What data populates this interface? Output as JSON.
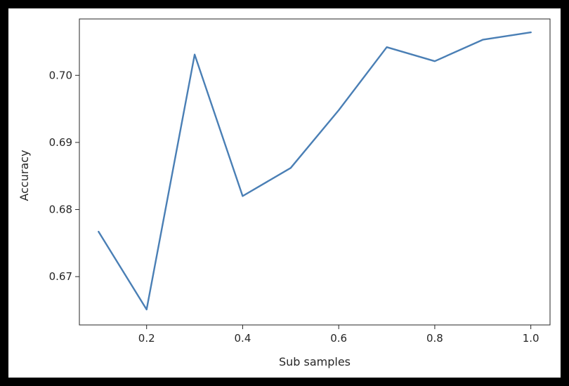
{
  "chart_data": {
    "type": "line",
    "title": "",
    "xlabel": "Sub samples",
    "ylabel": "Accuracy",
    "xlim": [
      0.06,
      1.04
    ],
    "ylim": [
      0.6628,
      0.7084
    ],
    "x_ticks": [
      0.2,
      0.4,
      0.6,
      0.8,
      1.0
    ],
    "x_tick_labels": [
      "0.2",
      "0.4",
      "0.6",
      "0.8",
      "1.0"
    ],
    "y_ticks": [
      0.67,
      0.68,
      0.69,
      0.7
    ],
    "y_tick_labels": [
      "0.67",
      "0.68",
      "0.69",
      "0.70"
    ],
    "grid": false,
    "series": [
      {
        "color": "#4a7fb5",
        "x": [
          0.1,
          0.2,
          0.3,
          0.4,
          0.5,
          0.6,
          0.7,
          0.8,
          0.9,
          1.0
        ],
        "y": [
          0.6767,
          0.6651,
          0.7031,
          0.682,
          0.6862,
          0.6948,
          0.7042,
          0.7021,
          0.7053,
          0.7064
        ]
      }
    ]
  }
}
